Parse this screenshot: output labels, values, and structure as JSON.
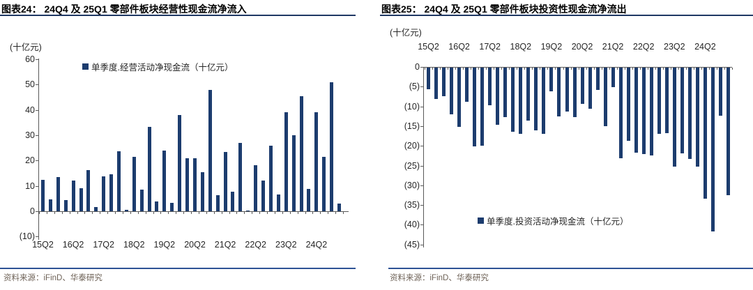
{
  "colors": {
    "bar": "#1c3c6e",
    "title_rule": "#1f3864",
    "footer_rule": "#2e5395",
    "axis": "#595959",
    "text": "#262626",
    "title_text": "#000000",
    "footer_text": "#6e6257"
  },
  "chart_data": [
    {
      "type": "bar",
      "title": "图表24：  24Q4 及 25Q1 零部件板块经营性现金流净流入",
      "unit": "(十亿元)",
      "legend": "单季度.经营活动净现金流（十亿元）",
      "legend_position": "top",
      "source": "资料来源：iFinD、华泰研究",
      "grid": false,
      "ylim": [
        -10,
        60
      ],
      "categories": [
        "15Q2",
        "15Q3",
        "15Q4",
        "16Q1",
        "16Q2",
        "16Q3",
        "16Q4",
        "17Q1",
        "17Q2",
        "17Q3",
        "17Q4",
        "18Q1",
        "18Q2",
        "18Q3",
        "18Q4",
        "19Q1",
        "19Q2",
        "19Q3",
        "19Q4",
        "20Q1",
        "20Q2",
        "20Q3",
        "20Q4",
        "21Q1",
        "21Q2",
        "21Q3",
        "21Q4",
        "22Q1",
        "22Q2",
        "22Q3",
        "22Q4",
        "23Q1",
        "23Q2",
        "23Q3",
        "23Q4",
        "24Q1",
        "24Q2",
        "24Q3",
        "24Q4",
        "25Q1"
      ],
      "values": [
        12.5,
        4.8,
        13.5,
        4.5,
        12.0,
        9.0,
        16.3,
        1.8,
        13.8,
        14.5,
        23.7,
        0.7,
        21.6,
        8.5,
        33.4,
        4.0,
        24.0,
        3.2,
        38.0,
        20.8,
        21.0,
        15.5,
        47.8,
        6.4,
        23.3,
        7.6,
        27.0,
        0.3,
        18.3,
        12.1,
        26.0,
        6.7,
        39.0,
        30.0,
        45.3,
        8.8,
        39.0,
        21.4,
        50.8,
        3.0
      ],
      "x_tick_labels": [
        "15Q2",
        "16Q2",
        "17Q2",
        "18Q2",
        "19Q2",
        "20Q2",
        "21Q2",
        "22Q2",
        "23Q2",
        "24Q2"
      ],
      "yticks": [
        {
          "v": 60,
          "label": "60"
        },
        {
          "v": 50,
          "label": "50"
        },
        {
          "v": 40,
          "label": "40"
        },
        {
          "v": 30,
          "label": "30"
        },
        {
          "v": 20,
          "label": "20"
        },
        {
          "v": 10,
          "label": "10"
        },
        {
          "v": 0,
          "label": "0"
        },
        {
          "v": -10,
          "label": "(10)"
        }
      ]
    },
    {
      "type": "bar",
      "title": "图表25：  24Q4 及 25Q1 零部件板块投资性现金流净流出",
      "unit": "(十亿元)",
      "legend": "单季度.投资活动净现金流（十亿元）",
      "legend_position": "bottom",
      "source": "资料来源：iFinD、华泰研究",
      "grid": false,
      "ylim": [
        -45,
        0
      ],
      "categories": [
        "15Q2",
        "15Q3",
        "15Q4",
        "16Q1",
        "16Q2",
        "16Q3",
        "16Q4",
        "17Q1",
        "17Q2",
        "17Q3",
        "17Q4",
        "18Q1",
        "18Q2",
        "18Q3",
        "18Q4",
        "19Q1",
        "19Q2",
        "19Q3",
        "19Q4",
        "20Q1",
        "20Q2",
        "20Q3",
        "20Q4",
        "21Q1",
        "21Q2",
        "21Q3",
        "21Q4",
        "22Q1",
        "22Q2",
        "22Q3",
        "22Q4",
        "23Q1",
        "23Q2",
        "23Q3",
        "23Q4",
        "24Q1",
        "24Q2",
        "24Q3",
        "24Q4",
        "25Q1"
      ],
      "values": [
        -5.4,
        -8.0,
        -7.3,
        -11.9,
        -15.0,
        -8.7,
        -20.0,
        -19.7,
        -9.6,
        -14.5,
        -12.6,
        -16.2,
        -16.8,
        -13.5,
        -15.9,
        -16.8,
        -6.0,
        -12.4,
        -11.1,
        -12.5,
        -9.1,
        -10.4,
        -5.7,
        -14.8,
        -4.9,
        -23.0,
        -18.6,
        -21.6,
        -21.9,
        -22.3,
        -16.8,
        -16.6,
        -25.0,
        -21.7,
        -23.1,
        -25.1,
        -33.2,
        -41.5,
        -12.1,
        -32.4
      ],
      "x_tick_labels": [
        "15Q2",
        "16Q2",
        "17Q2",
        "18Q2",
        "19Q2",
        "20Q2",
        "21Q2",
        "22Q2",
        "23Q2",
        "24Q2"
      ],
      "yticks": [
        {
          "v": 0,
          "label": "0"
        },
        {
          "v": -5,
          "label": "(5)"
        },
        {
          "v": -10,
          "label": "(10)"
        },
        {
          "v": -15,
          "label": "(15)"
        },
        {
          "v": -20,
          "label": "(20)"
        },
        {
          "v": -25,
          "label": "(25)"
        },
        {
          "v": -30,
          "label": "(30)"
        },
        {
          "v": -35,
          "label": "(35)"
        },
        {
          "v": -40,
          "label": "(40)"
        },
        {
          "v": -45,
          "label": "(45)"
        }
      ]
    }
  ]
}
